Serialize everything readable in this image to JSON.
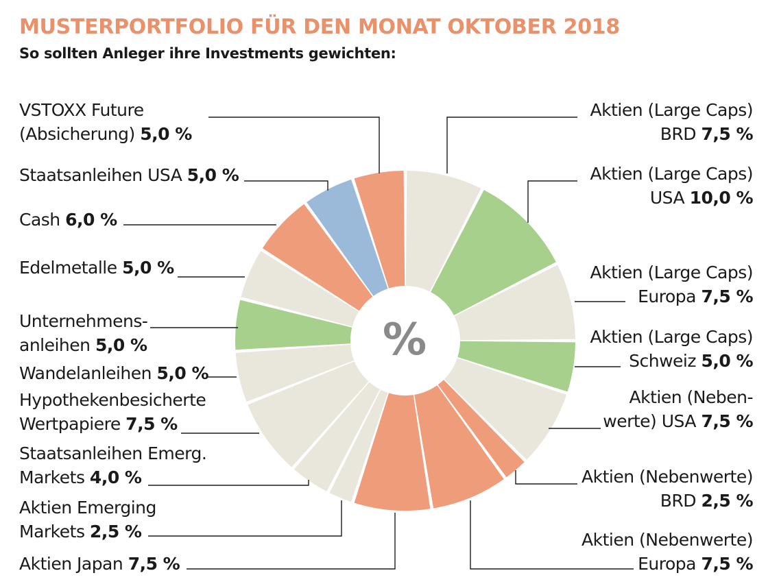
{
  "title": "MUSTERPORTFOLIO FÜR DEN MONAT OKTOBER 2018",
  "subtitle": "So sollten Anleger ihre Investments gewichten:",
  "center_symbol": "%",
  "colors": {
    "title": "#e8916b",
    "beige": "#e9e6dc",
    "green": "#a8d08d",
    "salmon": "#ef9c7a",
    "blue": "#9bb9d8"
  },
  "chart_data": {
    "type": "pie",
    "unit": "%",
    "slices": [
      {
        "label_lines": [
          "Aktien (Large Caps)",
          "BRD"
        ],
        "value": 7.5,
        "value_text": "7,5 %",
        "color": "#e9e6dc"
      },
      {
        "label_lines": [
          "Aktien (Large Caps)",
          "USA"
        ],
        "value": 10.0,
        "value_text": "10,0 %",
        "color": "#a8d08d"
      },
      {
        "label_lines": [
          "Aktien (Large Caps)",
          "Europa"
        ],
        "value": 7.5,
        "value_text": "7,5  %",
        "color": "#e9e6dc"
      },
      {
        "label_lines": [
          "Aktien (Large Caps)",
          "Schweiz"
        ],
        "value": 5.0,
        "value_text": "5,0 %",
        "color": "#a8d08d"
      },
      {
        "label_lines": [
          "Aktien (Neben-",
          "werte) USA"
        ],
        "value": 7.5,
        "value_text": "7,5 %",
        "color": "#e9e6dc"
      },
      {
        "label_lines": [
          "Aktien (Nebenwerte)",
          "BRD"
        ],
        "value": 2.5,
        "value_text": "2,5 %",
        "color": "#ef9c7a"
      },
      {
        "label_lines": [
          "Aktien (Nebenwerte)",
          "Europa"
        ],
        "value": 7.5,
        "value_text": "7,5 %",
        "color": "#ef9c7a"
      },
      {
        "label_lines": [
          "Aktien Japan"
        ],
        "value": 7.5,
        "value_text": "7,5 %",
        "color": "#ef9c7a"
      },
      {
        "label_lines": [
          "Aktien Emerging",
          "Markets"
        ],
        "value": 2.5,
        "value_text": "2,5 %",
        "color": "#e9e6dc"
      },
      {
        "label_lines": [
          "Staatsanleihen Emerg.",
          "Markets"
        ],
        "value": 4.0,
        "value_text": "4,0 %",
        "color": "#e9e6dc"
      },
      {
        "label_lines": [
          "Hypothekenbesicherte",
          "Wertpapiere"
        ],
        "value": 7.5,
        "value_text": "7,5 %",
        "color": "#e9e6dc"
      },
      {
        "label_lines": [
          "Wandelanleihen"
        ],
        "value": 5.0,
        "value_text": "5,0 %",
        "color": "#e9e6dc"
      },
      {
        "label_lines": [
          "Unternehmens-",
          "anleihen"
        ],
        "value": 5.0,
        "value_text": "5,0 %",
        "color": "#a8d08d"
      },
      {
        "label_lines": [
          "Edelmetalle"
        ],
        "value": 5.0,
        "value_text": "5,0 %",
        "color": "#e9e6dc"
      },
      {
        "label_lines": [
          "Cash"
        ],
        "value": 6.0,
        "value_text": "6,0 %",
        "color": "#ef9c7a"
      },
      {
        "label_lines": [
          "Staatsanleihen USA"
        ],
        "value": 5.0,
        "value_text": "5,0 %",
        "color": "#9bb9d8"
      },
      {
        "label_lines": [
          "VSTOXX Future",
          "(Absicherung)"
        ],
        "value": 5.0,
        "value_text": "5,0 %",
        "color": "#ef9c7a"
      }
    ]
  }
}
